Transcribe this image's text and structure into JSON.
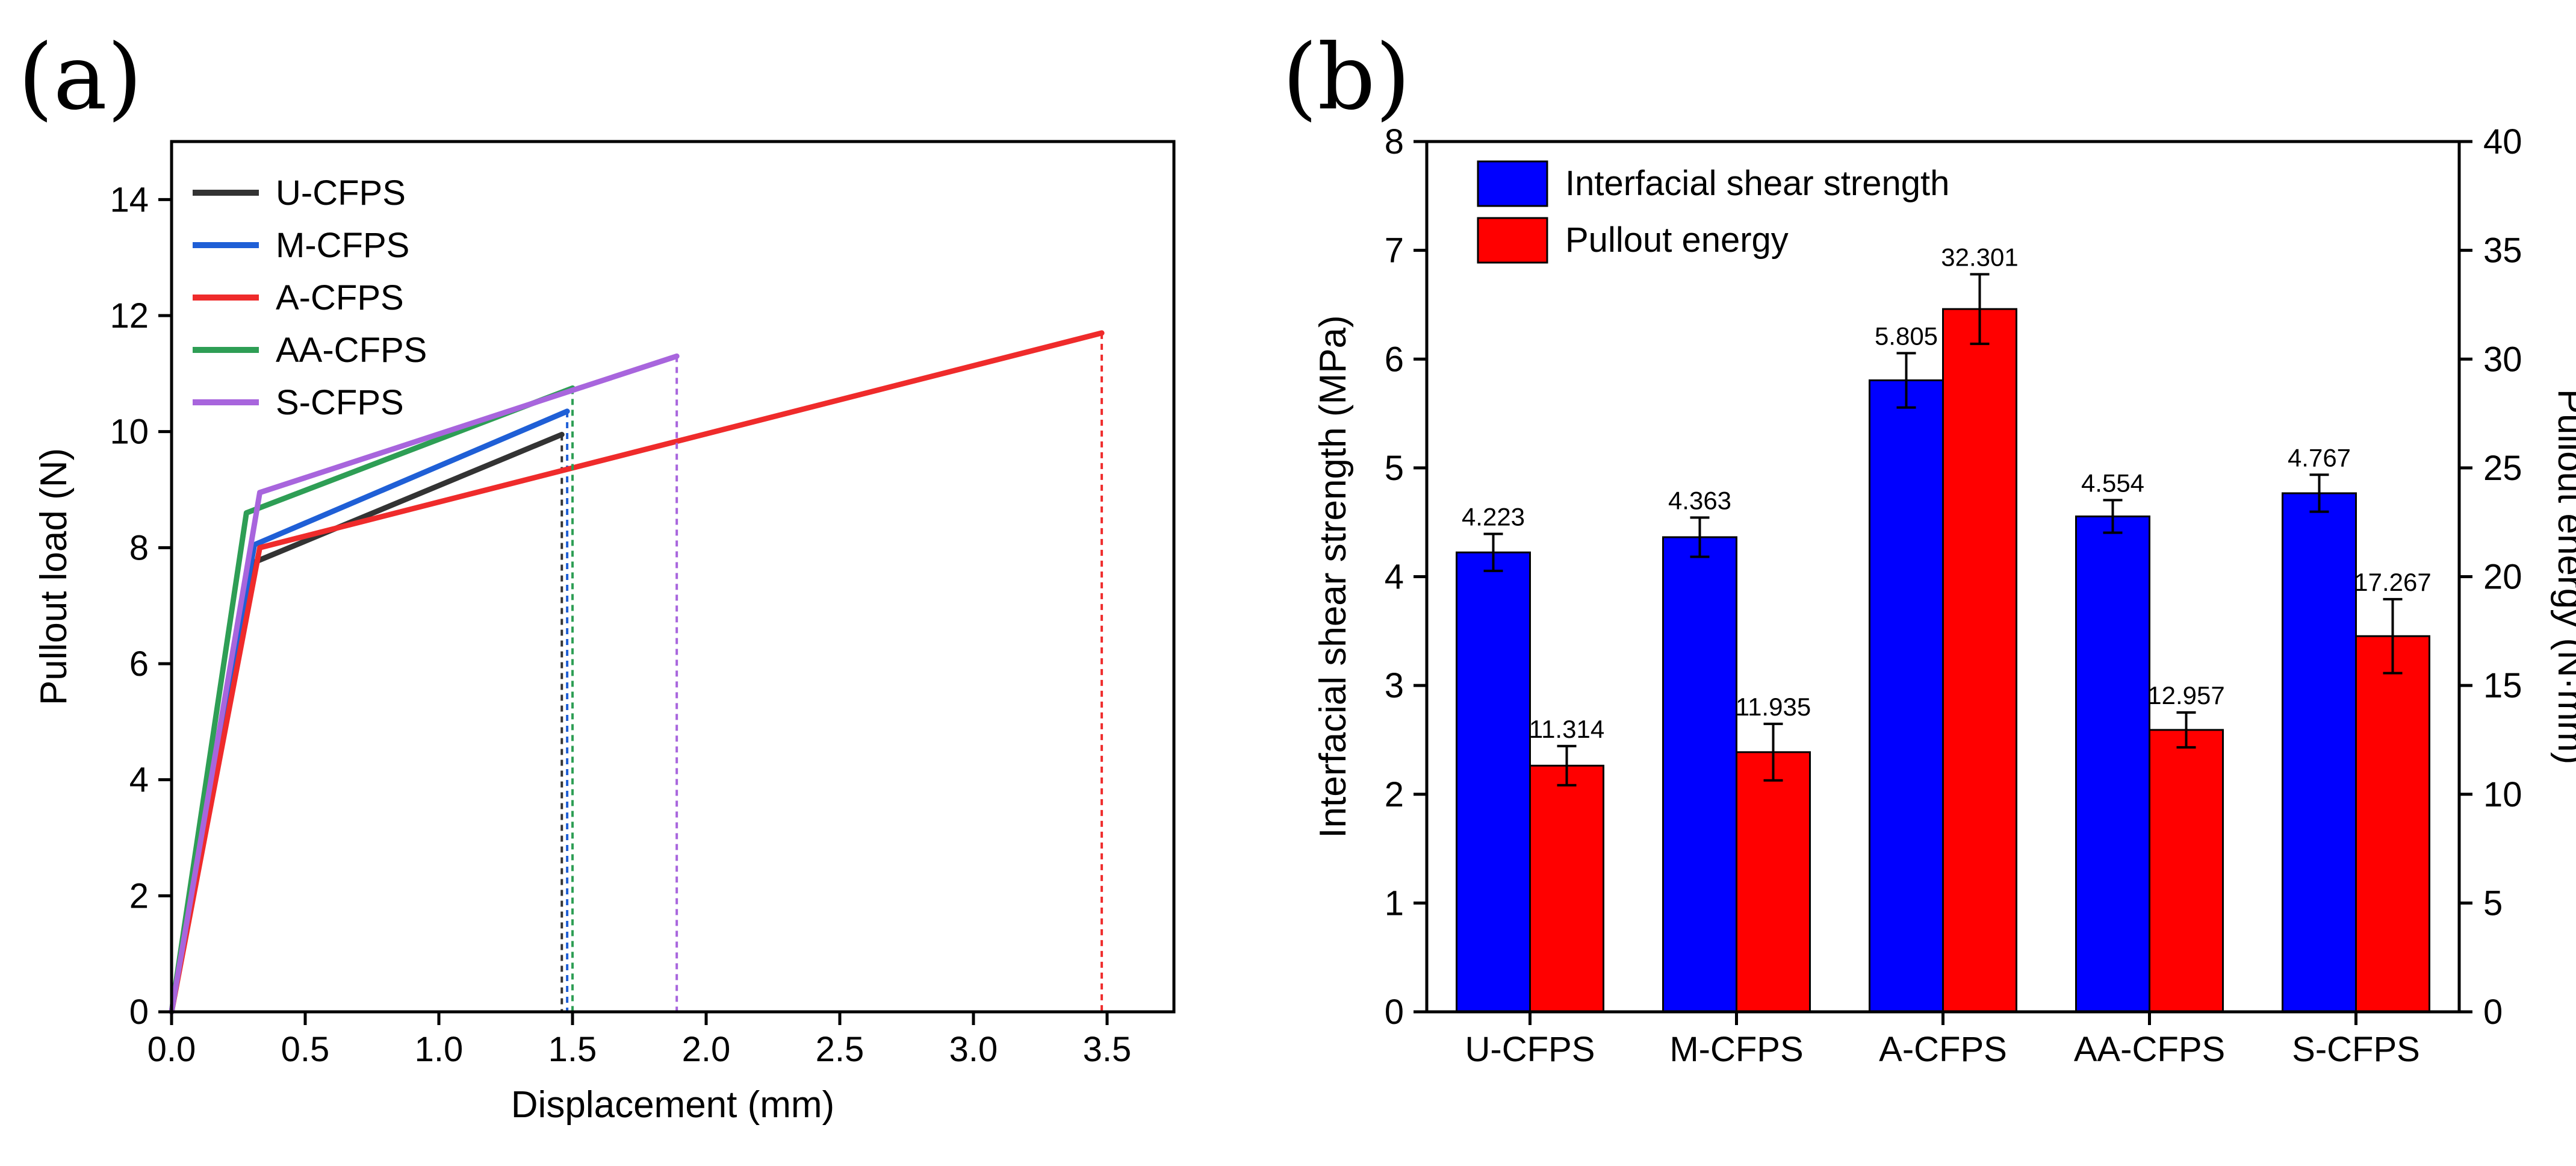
{
  "chart_data": [
    {
      "panel_label": "(a)",
      "type": "line",
      "xlabel": "Displacement (mm)",
      "ylabel": "Pullout load (N)",
      "xlim": [
        0,
        3.75
      ],
      "ylim": [
        0,
        15
      ],
      "xticks": [
        0.0,
        0.5,
        1.0,
        1.5,
        2.0,
        2.5,
        3.0,
        3.5
      ],
      "xtick_labels": [
        "0.0",
        "0.5",
        "1.0",
        "1.5",
        "2.0",
        "2.5",
        "3.0",
        "3.5"
      ],
      "yticks": [
        0,
        2,
        4,
        6,
        8,
        10,
        12,
        14
      ],
      "ytick_labels": [
        "0",
        "2",
        "4",
        "6",
        "8",
        "10",
        "12",
        "14"
      ],
      "grid": false,
      "legend_position": "top-left",
      "series": [
        {
          "name": "U-CFPS",
          "color": "#333333",
          "x": [
            0,
            0.31,
            1.46
          ],
          "y": [
            0,
            7.75,
            9.95
          ],
          "drop_x": 1.46
        },
        {
          "name": "M-CFPS",
          "color": "#1f5fd6",
          "x": [
            0,
            0.31,
            1.48
          ],
          "y": [
            0,
            8.05,
            10.35
          ],
          "drop_x": 1.48
        },
        {
          "name": "A-CFPS",
          "color": "#ef2b2b",
          "x": [
            0,
            0.33,
            3.48
          ],
          "y": [
            0,
            8.0,
            11.7
          ],
          "drop_x": 3.48
        },
        {
          "name": "AA-CFPS",
          "color": "#2e9e55",
          "x": [
            0,
            0.28,
            1.5
          ],
          "y": [
            0,
            8.6,
            10.75
          ],
          "drop_x": 1.5
        },
        {
          "name": "S-CFPS",
          "color": "#a865dd",
          "x": [
            0,
            0.33,
            1.89
          ],
          "y": [
            0,
            8.95,
            11.3
          ],
          "drop_x": 1.89
        }
      ]
    },
    {
      "panel_label": "(b)",
      "type": "bar",
      "categories": [
        "U-CFPS",
        "M-CFPS",
        "A-CFPS",
        "AA-CFPS",
        "S-CFPS"
      ],
      "ylabel": "Interfacial shear strength (MPa)",
      "ylabel_right": "Pullout energy (N·mm)",
      "ylim": [
        0,
        8
      ],
      "ylim_right": [
        0,
        40
      ],
      "yticks": [
        0,
        1,
        2,
        3,
        4,
        5,
        6,
        7,
        8
      ],
      "ytick_labels": [
        "0",
        "1",
        "2",
        "3",
        "4",
        "5",
        "6",
        "7",
        "8"
      ],
      "yticks_right": [
        0,
        5,
        10,
        15,
        20,
        25,
        30,
        35,
        40
      ],
      "ytick_labels_right": [
        "0",
        "5",
        "10",
        "15",
        "20",
        "25",
        "30",
        "35",
        "40"
      ],
      "grid": false,
      "legend_position": "top-left",
      "series": [
        {
          "name": "Interfacial shear strength",
          "axis": "left",
          "color": "#0000ff",
          "values": [
            4.223,
            4.363,
            5.805,
            4.554,
            4.767
          ],
          "labels": [
            "4.223",
            "4.363",
            "5.805",
            "4.554",
            "4.767"
          ],
          "errors": [
            0.17,
            0.18,
            0.25,
            0.15,
            0.17
          ]
        },
        {
          "name": "Pullout energy",
          "axis": "right",
          "color": "#ff0000",
          "values": [
            11.314,
            11.935,
            32.301,
            12.957,
            17.267
          ],
          "labels": [
            "11.314",
            "11.935",
            "32.301",
            "12.957",
            "17.267"
          ],
          "errors": [
            0.9,
            1.3,
            1.6,
            0.8,
            1.7
          ]
        }
      ]
    }
  ]
}
